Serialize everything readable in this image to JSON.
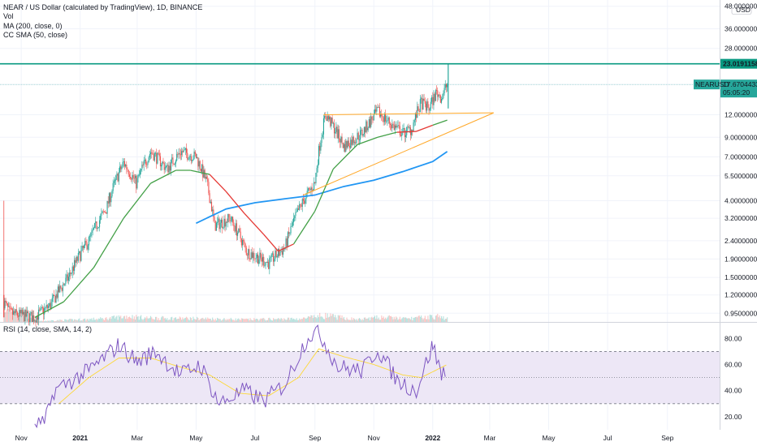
{
  "legend": {
    "title": "NEAR / US Dollar (calculated by TradingView), 1D, BINANCE",
    "vol": "Vol",
    "ma": "MA (200, close, 0)",
    "sma": "CC SMA (50, close)"
  },
  "rsi_legend": "RSI (14, close, SMA, 14, 2)",
  "currency": "USD",
  "colors": {
    "up": "#26a69a",
    "down": "#ef5350",
    "ma200": "#2196f3",
    "sma_green": "#43a047",
    "sma_red": "#e53935",
    "hline": "#089981",
    "trend": "#ffa726",
    "rsi": "#7e57c2",
    "rsi_sma": "#fdd835",
    "rsi_band": "#ede7f6"
  },
  "badges": {
    "level": "23.01911583",
    "symbol": "NEARUSD",
    "price": "17.67044336",
    "countdown": "05:05:20"
  },
  "chart_data": [
    {
      "type": "candlestick",
      "title": "NEAR / US Dollar (calculated by TradingView), 1D, BINANCE",
      "scale": "log",
      "y_ticks": [
        "48.00000000",
        "36.00000000",
        "28.00000000",
        "17.67044336",
        "12.00000000",
        "9.00000000",
        "7.00000000",
        "5.50000000",
        "4.00000000",
        "3.20000000",
        "2.40000000",
        "1.90000000",
        "1.50000000",
        "1.20000000",
        "0.95000000"
      ],
      "ylim": [
        0.85,
        52
      ],
      "x_ticks": [
        "Nov",
        "2021",
        "Mar",
        "May",
        "Jul",
        "Sep",
        "Nov",
        "2022",
        "Mar",
        "May",
        "Jul",
        "Sep"
      ],
      "x_range": [
        "2020-10-10",
        "2022-10-25"
      ],
      "last_price": 17.67,
      "horizontal_level": 23.02,
      "price_path": [
        [
          "2020-10-14",
          1.1
        ],
        [
          "2020-10-20",
          0.95
        ],
        [
          "2020-11-15",
          0.9
        ],
        [
          "2020-12-01",
          1.05
        ],
        [
          "2020-12-20",
          1.5
        ],
        [
          "2021-01-10",
          2.4
        ],
        [
          "2021-01-28",
          3.6
        ],
        [
          "2021-02-15",
          6.5
        ],
        [
          "2021-02-28",
          5.0
        ],
        [
          "2021-03-15",
          7.5
        ],
        [
          "2021-04-01",
          6.0
        ],
        [
          "2021-04-15",
          7.5
        ],
        [
          "2021-05-01",
          7.0
        ],
        [
          "2021-05-12",
          5.0
        ],
        [
          "2021-05-20",
          2.9
        ],
        [
          "2021-06-05",
          3.2
        ],
        [
          "2021-06-22",
          2.1
        ],
        [
          "2021-07-15",
          1.8
        ],
        [
          "2021-08-01",
          2.2
        ],
        [
          "2021-08-20",
          4.0
        ],
        [
          "2021-09-01",
          5.0
        ],
        [
          "2021-09-12",
          12.0
        ],
        [
          "2021-10-01",
          8.0
        ],
        [
          "2021-10-20",
          9.5
        ],
        [
          "2021-11-05",
          12.5
        ],
        [
          "2021-11-20",
          10.5
        ],
        [
          "2021-12-01",
          9.5
        ],
        [
          "2021-12-10",
          10.0
        ],
        [
          "2021-12-20",
          14.0
        ],
        [
          "2021-12-28",
          13.0
        ],
        [
          "2022-01-05",
          16.0
        ],
        [
          "2022-01-10",
          15.0
        ],
        [
          "2022-01-16",
          17.7
        ]
      ],
      "series": [
        {
          "name": "MA (200, close, 0)",
          "points": [
            [
              "2021-05-01",
              3.0
            ],
            [
              "2021-06-01",
              3.6
            ],
            [
              "2021-07-01",
              3.9
            ],
            [
              "2021-08-01",
              4.1
            ],
            [
              "2021-09-01",
              4.3
            ],
            [
              "2021-10-01",
              4.8
            ],
            [
              "2021-11-01",
              5.2
            ],
            [
              "2021-12-01",
              5.8
            ],
            [
              "2022-01-01",
              6.6
            ],
            [
              "2022-01-16",
              7.5
            ]
          ]
        },
        {
          "name": "CC SMA (50, close)",
          "points": [
            [
              "2020-11-15",
              0.9
            ],
            [
              "2020-12-15",
              1.1
            ],
            [
              "2021-01-15",
              1.7
            ],
            [
              "2021-02-15",
              3.2
            ],
            [
              "2021-03-15",
              5.0
            ],
            [
              "2021-04-10",
              5.9
            ],
            [
              "2021-04-25",
              5.9
            ],
            [
              "2021-05-15",
              5.6
            ],
            [
              "2021-06-01",
              4.5
            ],
            [
              "2021-06-20",
              3.4
            ],
            [
              "2021-07-10",
              2.6
            ],
            [
              "2021-07-25",
              2.1
            ],
            [
              "2021-08-10",
              2.3
            ],
            [
              "2021-09-01",
              3.5
            ],
            [
              "2021-09-20",
              6.0
            ],
            [
              "2021-10-15",
              8.2
            ],
            [
              "2021-11-05",
              9.0
            ],
            [
              "2021-11-25",
              9.6
            ],
            [
              "2021-12-15",
              9.7
            ],
            [
              "2022-01-01",
              10.5
            ],
            [
              "2022-01-16",
              11.2
            ]
          ]
        }
      ],
      "trendlines": [
        {
          "points": [
            [
              "2021-09-10",
              12.0
            ],
            [
              "2022-03-05",
              12.3
            ]
          ]
        },
        {
          "points": [
            [
              "2021-08-20",
              4.3
            ],
            [
              "2022-03-05",
              12.3
            ]
          ]
        }
      ],
      "volume_path": [
        [
          "2020-10-12",
          0.2
        ],
        [
          "2020-10-20",
          0.9
        ],
        [
          "2020-11-15",
          0.05
        ],
        [
          "2021-01-25",
          0.2
        ],
        [
          "2021-02-20",
          0.35
        ],
        [
          "2021-03-10",
          0.25
        ],
        [
          "2021-05-15",
          0.2
        ],
        [
          "2021-06-20",
          0.15
        ],
        [
          "2021-08-20",
          0.2
        ],
        [
          "2021-09-10",
          0.4
        ],
        [
          "2021-10-15",
          0.15
        ],
        [
          "2021-11-10",
          0.3
        ],
        [
          "2021-12-05",
          0.2
        ],
        [
          "2022-01-05",
          0.35
        ],
        [
          "2022-01-16",
          0.2
        ]
      ]
    },
    {
      "type": "line",
      "title": "RSI (14, close, SMA, 14, 2)",
      "y_ticks": [
        "80.00",
        "60.00",
        "40.00",
        "20.00"
      ],
      "ylim": [
        10,
        92
      ],
      "bands": [
        70,
        50,
        30
      ],
      "series": [
        {
          "name": "RSI",
          "points": [
            [
              "2020-11-15",
              15
            ],
            [
              "2020-11-25",
              14
            ],
            [
              "2020-12-05",
              40
            ],
            [
              "2021-01-10",
              55
            ],
            [
              "2021-02-10",
              75
            ],
            [
              "2021-03-01",
              62
            ],
            [
              "2021-03-20",
              70
            ],
            [
              "2021-04-15",
              52
            ],
            [
              "2021-05-05",
              60
            ],
            [
              "2021-05-25",
              30
            ],
            [
              "2021-06-20",
              40
            ],
            [
              "2021-07-10",
              32
            ],
            [
              "2021-08-01",
              45
            ],
            [
              "2021-08-25",
              82
            ],
            [
              "2021-09-05",
              85
            ],
            [
              "2021-09-25",
              58
            ],
            [
              "2021-10-20",
              55
            ],
            [
              "2021-11-05",
              72
            ],
            [
              "2021-11-25",
              48
            ],
            [
              "2021-12-15",
              40
            ],
            [
              "2022-01-01",
              75
            ],
            [
              "2022-01-10",
              52
            ],
            [
              "2022-01-16",
              60
            ]
          ]
        },
        {
          "name": "RSI-based MA",
          "points": [
            [
              "2020-12-10",
              30
            ],
            [
              "2021-01-10",
              50
            ],
            [
              "2021-02-10",
              65
            ],
            [
              "2021-03-15",
              65
            ],
            [
              "2021-04-15",
              58
            ],
            [
              "2021-05-15",
              52
            ],
            [
              "2021-06-15",
              38
            ],
            [
              "2021-07-15",
              36
            ],
            [
              "2021-08-15",
              50
            ],
            [
              "2021-09-05",
              72
            ],
            [
              "2021-10-01",
              66
            ],
            [
              "2021-11-01",
              60
            ],
            [
              "2021-12-01",
              52
            ],
            [
              "2021-12-20",
              50
            ],
            [
              "2022-01-16",
              60
            ]
          ]
        }
      ]
    }
  ]
}
